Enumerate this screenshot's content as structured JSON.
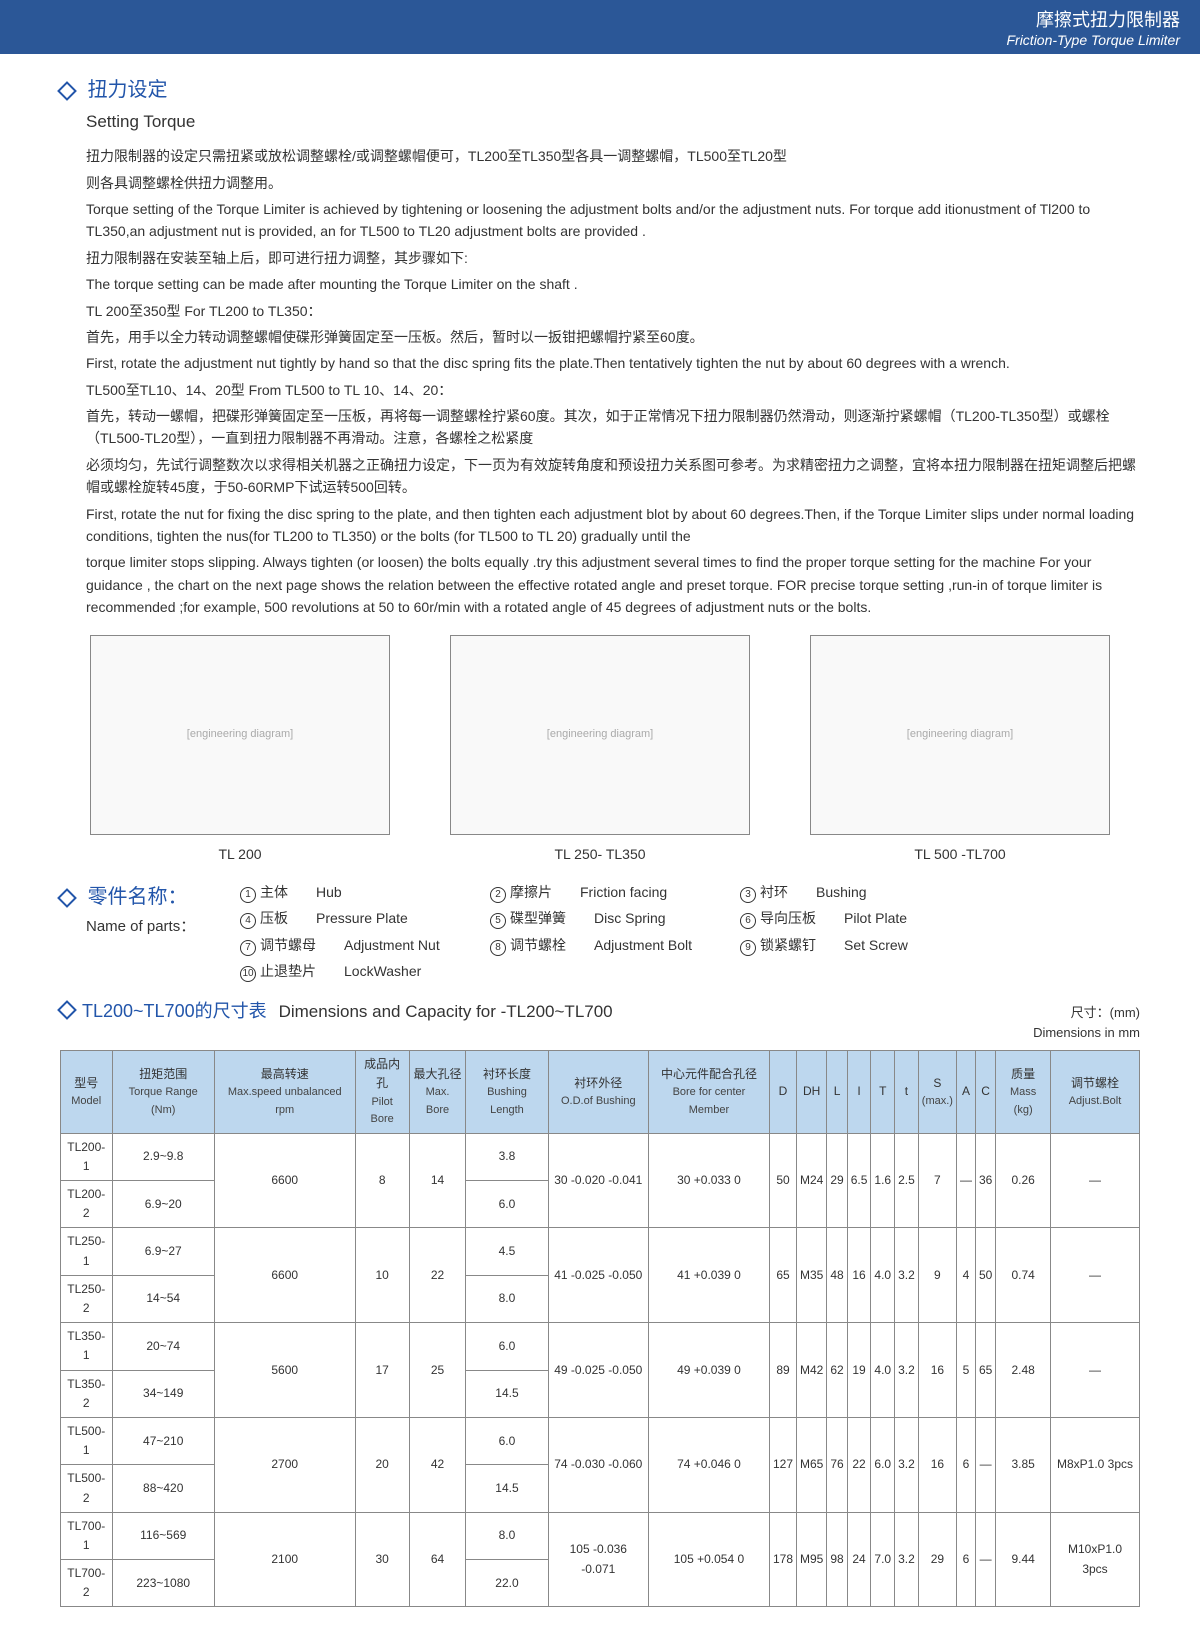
{
  "header": {
    "cn": "摩擦式扭力限制器",
    "en": "Friction-Type Torque Limiter"
  },
  "section1": {
    "title_cn": "扭力设定",
    "title_en": "Setting Torque",
    "lines": [
      "扭力限制器的设定只需扭紧或放松调整螺栓/或调整螺帽便可，TL200至TL350型各具一调整螺帽，TL500至TL20型",
      "则各具调整螺栓供扭力调整用。",
      "Torque setting of the Torque Limiter is achieved by tightening or loosening the adjustment bolts and/or the adjustment nuts. For torque add itionustment of Tl200 to TL350,an adjustment nut is provided, an for TL500 to TL20 adjustment bolts are provided .",
      "扭力限制器在安装至轴上后，即可进行扭力调整，其步骤如下:",
      "The torque setting can be made after mounting the Torque Limiter on the shaft .",
      "TL 200至350型  For TL200 to TL350：",
      "首先，用手以全力转动调整螺帽使碟形弹簧固定至一压板。然后，暂时以一扳钳把螺帽拧紧至60度。",
      "First, rotate the adjustment nut tightly by hand so that the disc spring fits the plate.Then tentatively tighten the nut by about 60 degrees with a wrench.",
      "TL500至TL10、14、20型   From TL500 to TL 10、14、20：",
      "首先，转动一螺帽，把碟形弹簧固定至一压板，再将每一调整螺栓拧紧60度。其次，如于正常情况下扭力限制器仍然滑动，则逐渐拧紧螺帽（TL200-TL350型）或螺栓（TL500-TL20型），一直到扭力限制器不再滑动。注意，各螺栓之松紧度",
      "必须均匀，先试行调整数次以求得相关机器之正确扭力设定，下一页为有效旋转角度和预设扭力关系图可参考。为求精密扭力之调整，宜将本扭力限制器在扭矩调整后把螺帽或螺栓旋转45度，于50-60RMP下试运转500回转。",
      "First, rotate the nut for fixing the disc spring to the plate, and then tighten each adjustment blot by about 60 degrees.Then, if the Torque Limiter slips under normal loading conditions, tighten the nus(for TL200 to TL350) or the bolts  (for TL500 to TL 20) gradually  until the",
      "torque limiter stops slipping. Always tighten (or loosen) the bolts equally .try this adjustment several times to find the proper torque setting for the machine For your guidance , the chart on the next page shows the relation between the  effective  rotated  angle and preset torque. FOR precise torque setting ,run-in of torque limiter is recommended ;for example, 500 revolutions at 50 to 60r/min with a rotated angle of 45 degrees of adjustment nuts or the bolts."
    ]
  },
  "diagrams": [
    {
      "label": "TL 200"
    },
    {
      "label": "TL 250- TL350"
    },
    {
      "label": "TL 500 -TL700"
    }
  ],
  "parts": {
    "title_cn": "零件名称：",
    "title_en": "Name of parts：",
    "items": [
      {
        "n": "1",
        "cn": "主体",
        "en": "Hub"
      },
      {
        "n": "2",
        "cn": "摩擦片",
        "en": "Friction facing"
      },
      {
        "n": "3",
        "cn": "衬环",
        "en": "Bushing"
      },
      {
        "n": "4",
        "cn": "压板",
        "en": "Pressure Plate"
      },
      {
        "n": "5",
        "cn": "碟型弹簧",
        "en": "Disc Spring"
      },
      {
        "n": "6",
        "cn": "导向压板",
        "en": "Pilot Plate"
      },
      {
        "n": "7",
        "cn": "调节螺母",
        "en": "Adjustment Nut"
      },
      {
        "n": "8",
        "cn": "调节螺栓",
        "en": "Adjustment Bolt"
      },
      {
        "n": "9",
        "cn": "锁紧螺钉",
        "en": "Set Screw"
      },
      {
        "n": "10",
        "cn": "止退垫片",
        "en": "LockWasher"
      }
    ]
  },
  "table": {
    "title_cn": "TL200~TL700的尺寸表",
    "title_en": "Dimensions and Capacity for -TL200~TL700",
    "unit_cn": "尺寸：(mm)",
    "unit_en": "Dimensions in mm",
    "headers": [
      {
        "cn": "型号",
        "en": "Model"
      },
      {
        "cn": "扭矩范围",
        "en": "Torque Range (Nm)"
      },
      {
        "cn": "最高转速",
        "en": "Max.speed unbalanced rpm"
      },
      {
        "cn": "成品内孔",
        "en": "Pilot Bore"
      },
      {
        "cn": "最大孔径",
        "en": "Max. Bore"
      },
      {
        "cn": "衬环长度",
        "en": "Bushing Length"
      },
      {
        "cn": "衬环外径",
        "en": "O.D.of Bushing"
      },
      {
        "cn": "中心元件配合孔径",
        "en": "Bore for center Member"
      },
      {
        "cn": "D",
        "en": ""
      },
      {
        "cn": "DH",
        "en": ""
      },
      {
        "cn": "L",
        "en": ""
      },
      {
        "cn": "I",
        "en": ""
      },
      {
        "cn": "T",
        "en": ""
      },
      {
        "cn": "t",
        "en": ""
      },
      {
        "cn": "S",
        "en": "(max.)"
      },
      {
        "cn": "A",
        "en": ""
      },
      {
        "cn": "C",
        "en": ""
      },
      {
        "cn": "质量",
        "en": "Mass (kg)"
      },
      {
        "cn": "调节螺栓",
        "en": "Adjust.Bolt"
      }
    ],
    "groups": [
      {
        "rows": [
          {
            "model": "TL200-1",
            "torque": "2.9~9.8",
            "bushlen": "3.8"
          },
          {
            "model": "TL200-2",
            "torque": "6.9~20",
            "bushlen": "6.0"
          }
        ],
        "rpm": "6600",
        "pilot": "8",
        "maxbore": "14",
        "od": "30 -0.020 -0.041",
        "bore": "30 +0.033 0",
        "D": "50",
        "DH": "M24",
        "L": "29",
        "I": "6.5",
        "T": "1.6",
        "t": "2.5",
        "S": "7",
        "A": "—",
        "C": "36",
        "mass": "0.26",
        "bolt": "—"
      },
      {
        "rows": [
          {
            "model": "TL250-1",
            "torque": "6.9~27",
            "bushlen": "4.5"
          },
          {
            "model": "TL250-2",
            "torque": "14~54",
            "bushlen": "8.0"
          }
        ],
        "rpm": "6600",
        "pilot": "10",
        "maxbore": "22",
        "od": "41 -0.025 -0.050",
        "bore": "41 +0.039 0",
        "D": "65",
        "DH": "M35",
        "L": "48",
        "I": "16",
        "T": "4.0",
        "t": "3.2",
        "S": "9",
        "A": "4",
        "C": "50",
        "mass": "0.74",
        "bolt": "—"
      },
      {
        "rows": [
          {
            "model": "TL350-1",
            "torque": "20~74",
            "bushlen": "6.0"
          },
          {
            "model": "TL350-2",
            "torque": "34~149",
            "bushlen": "14.5"
          }
        ],
        "rpm": "5600",
        "pilot": "17",
        "maxbore": "25",
        "od": "49 -0.025 -0.050",
        "bore": "49 +0.039 0",
        "D": "89",
        "DH": "M42",
        "L": "62",
        "I": "19",
        "T": "4.0",
        "t": "3.2",
        "S": "16",
        "A": "5",
        "C": "65",
        "mass": "2.48",
        "bolt": "—"
      },
      {
        "rows": [
          {
            "model": "TL500-1",
            "torque": "47~210",
            "bushlen": "6.0"
          },
          {
            "model": "TL500-2",
            "torque": "88~420",
            "bushlen": "14.5"
          }
        ],
        "rpm": "2700",
        "pilot": "20",
        "maxbore": "42",
        "od": "74 -0.030 -0.060",
        "bore": "74 +0.046 0",
        "D": "127",
        "DH": "M65",
        "L": "76",
        "I": "22",
        "T": "6.0",
        "t": "3.2",
        "S": "16",
        "A": "6",
        "C": "—",
        "mass": "3.85",
        "bolt": "M8xP1.0 3pcs"
      },
      {
        "rows": [
          {
            "model": "TL700-1",
            "torque": "116~569",
            "bushlen": "8.0"
          },
          {
            "model": "TL700-2",
            "torque": "223~1080",
            "bushlen": "22.0"
          }
        ],
        "rpm": "2100",
        "pilot": "30",
        "maxbore": "64",
        "od": "105 -0.036 -0.071",
        "bore": "105 +0.054 0",
        "D": "178",
        "DH": "M95",
        "L": "98",
        "I": "24",
        "T": "7.0",
        "t": "3.2",
        "S": "29",
        "A": "6",
        "C": "—",
        "mass": "9.44",
        "bolt": "M10xP1.0 3pcs"
      }
    ]
  }
}
